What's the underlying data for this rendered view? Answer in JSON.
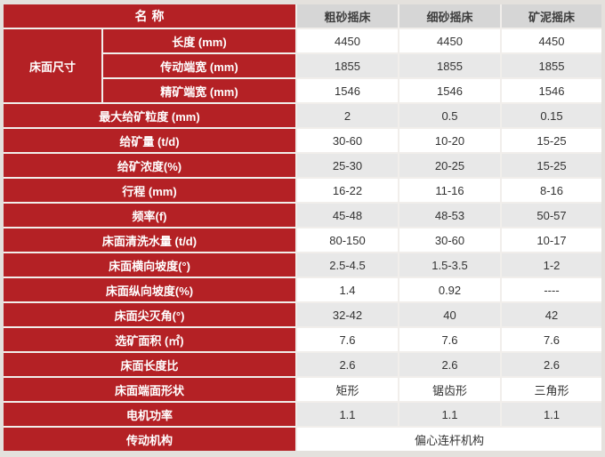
{
  "table": {
    "header": {
      "name_label": "名称",
      "columns": [
        "粗砂摇床",
        "细砂摇床",
        "矿泥摇床"
      ]
    },
    "bed_size_group": {
      "label": "床面尺寸",
      "rows": [
        {
          "label": "长度 (mm)",
          "values": [
            "4450",
            "4450",
            "4450"
          ]
        },
        {
          "label": "传动端宽 (mm)",
          "values": [
            "1855",
            "1855",
            "1855"
          ]
        },
        {
          "label": "精矿端宽 (mm)",
          "values": [
            "1546",
            "1546",
            "1546"
          ]
        }
      ]
    },
    "rows": [
      {
        "label": "最大给矿粒度 (mm)",
        "values": [
          "2",
          "0.5",
          "0.15"
        ]
      },
      {
        "label": "给矿量 (t/d)",
        "values": [
          "30-60",
          "10-20",
          "15-25"
        ]
      },
      {
        "label": "给矿浓度(%)",
        "values": [
          "25-30",
          "20-25",
          "15-25"
        ]
      },
      {
        "label": "行程 (mm)",
        "values": [
          "16-22",
          "11-16",
          "8-16"
        ]
      },
      {
        "label": "频率(f)",
        "values": [
          "45-48",
          "48-53",
          "50-57"
        ]
      },
      {
        "label": "床面清洗水量 (t/d)",
        "values": [
          "80-150",
          "30-60",
          "10-17"
        ]
      },
      {
        "label": "床面横向坡度(°)",
        "values": [
          "2.5-4.5",
          "1.5-3.5",
          "1-2"
        ]
      },
      {
        "label": "床面纵向坡度(%)",
        "values": [
          "1.4",
          "0.92",
          "----"
        ]
      },
      {
        "label": "床面尖灭角(°)",
        "values": [
          "32-42",
          "40",
          "42"
        ]
      },
      {
        "label": "选矿面积 (㎡)",
        "values": [
          "7.6",
          "7.6",
          "7.6"
        ]
      },
      {
        "label": "床面长度比",
        "values": [
          "2.6",
          "2.6",
          "2.6"
        ]
      },
      {
        "label": "床面端面形状",
        "values": [
          "矩形",
          "锯齿形",
          "三角形"
        ]
      },
      {
        "label": "电机功率",
        "values": [
          "1.1",
          "1.1",
          "1.1"
        ]
      }
    ],
    "footer": {
      "label": "传动机构",
      "value": "偏心连杆机构"
    },
    "colors": {
      "accent_red": "#b42125",
      "header_gray": "#d6d6d6",
      "stripe_gray": "#e8e8e8",
      "frame_gray": "#e4e1dd"
    }
  }
}
